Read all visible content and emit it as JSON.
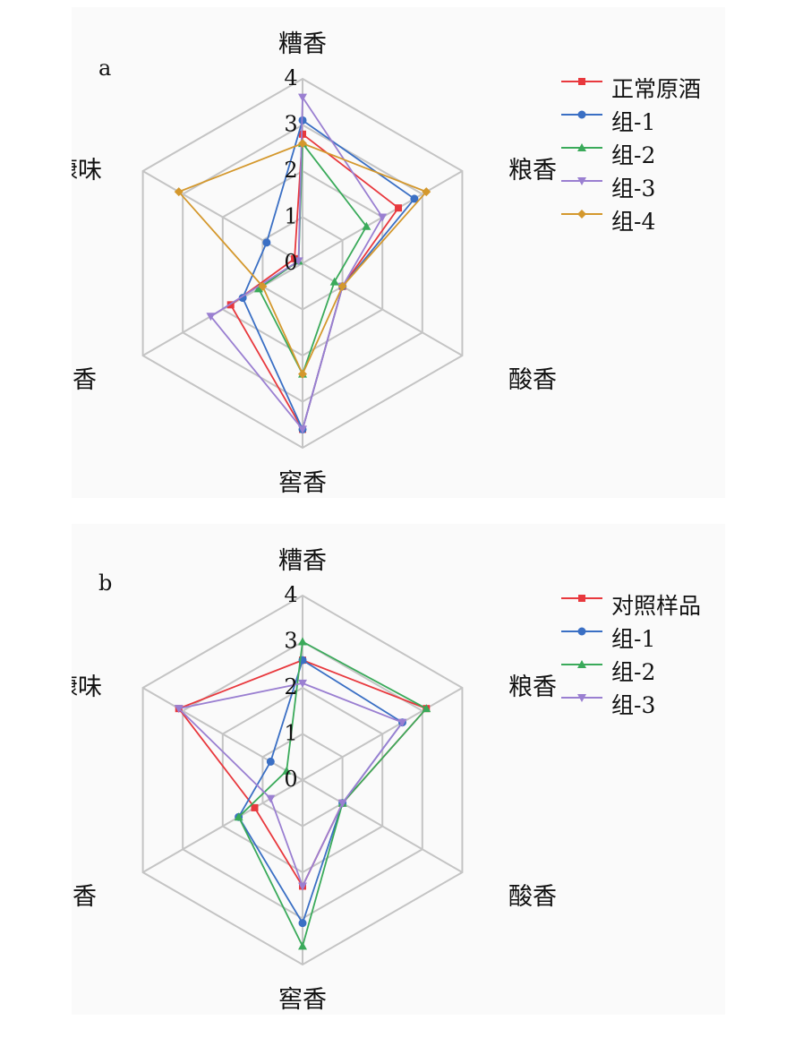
{
  "chart_data": [
    {
      "type": "radar",
      "panel_label": "a",
      "axes": [
        "糟香",
        "粮香",
        "酸香",
        "窖香",
        "陈香",
        "糠味"
      ],
      "rlim": [
        0,
        4
      ],
      "ticks": [
        "0",
        "1",
        "2",
        "3",
        "4"
      ],
      "grid": true,
      "legend_position": "right",
      "series": [
        {
          "name": "正常原酒",
          "color": "#e8383d",
          "marker": "square",
          "values": [
            2.8,
            2.4,
            1.0,
            3.6,
            1.8,
            0.2
          ]
        },
        {
          "name": "组-1",
          "color": "#3a6fc4",
          "marker": "circle",
          "values": [
            3.1,
            2.8,
            1.0,
            3.6,
            1.5,
            0.9
          ]
        },
        {
          "name": "组-2",
          "color": "#3aaa5a",
          "marker": "triangle-up",
          "values": [
            2.6,
            1.6,
            0.8,
            2.4,
            1.1,
            0.1
          ]
        },
        {
          "name": "组-3",
          "color": "#9a7fd1",
          "marker": "triangle-down",
          "values": [
            3.6,
            2.0,
            1.0,
            3.6,
            2.3,
            0.1
          ]
        },
        {
          "name": "组-4",
          "color": "#d4982d",
          "marker": "diamond",
          "values": [
            2.6,
            3.1,
            1.0,
            2.4,
            1.0,
            3.1
          ]
        }
      ]
    },
    {
      "type": "radar",
      "panel_label": "b",
      "axes": [
        "糟香",
        "粮香",
        "酸香",
        "窖香",
        "陈香",
        "糠味"
      ],
      "rlim": [
        0,
        4
      ],
      "ticks": [
        "0",
        "1",
        "2",
        "3",
        "4"
      ],
      "grid": true,
      "legend_position": "right",
      "series": [
        {
          "name": "对照样品",
          "color": "#e8383d",
          "marker": "square",
          "values": [
            2.6,
            3.1,
            1.0,
            2.3,
            1.2,
            3.1
          ]
        },
        {
          "name": "组-1",
          "color": "#3a6fc4",
          "marker": "circle",
          "values": [
            2.6,
            2.5,
            1.0,
            3.1,
            1.6,
            0.8
          ]
        },
        {
          "name": "组-2",
          "color": "#3aaa5a",
          "marker": "triangle-up",
          "values": [
            3.0,
            3.1,
            1.0,
            3.6,
            1.6,
            0.4
          ]
        },
        {
          "name": "组-3",
          "color": "#9a7fd1",
          "marker": "triangle-down",
          "values": [
            2.1,
            2.5,
            1.0,
            2.3,
            0.8,
            3.1
          ]
        }
      ]
    }
  ]
}
